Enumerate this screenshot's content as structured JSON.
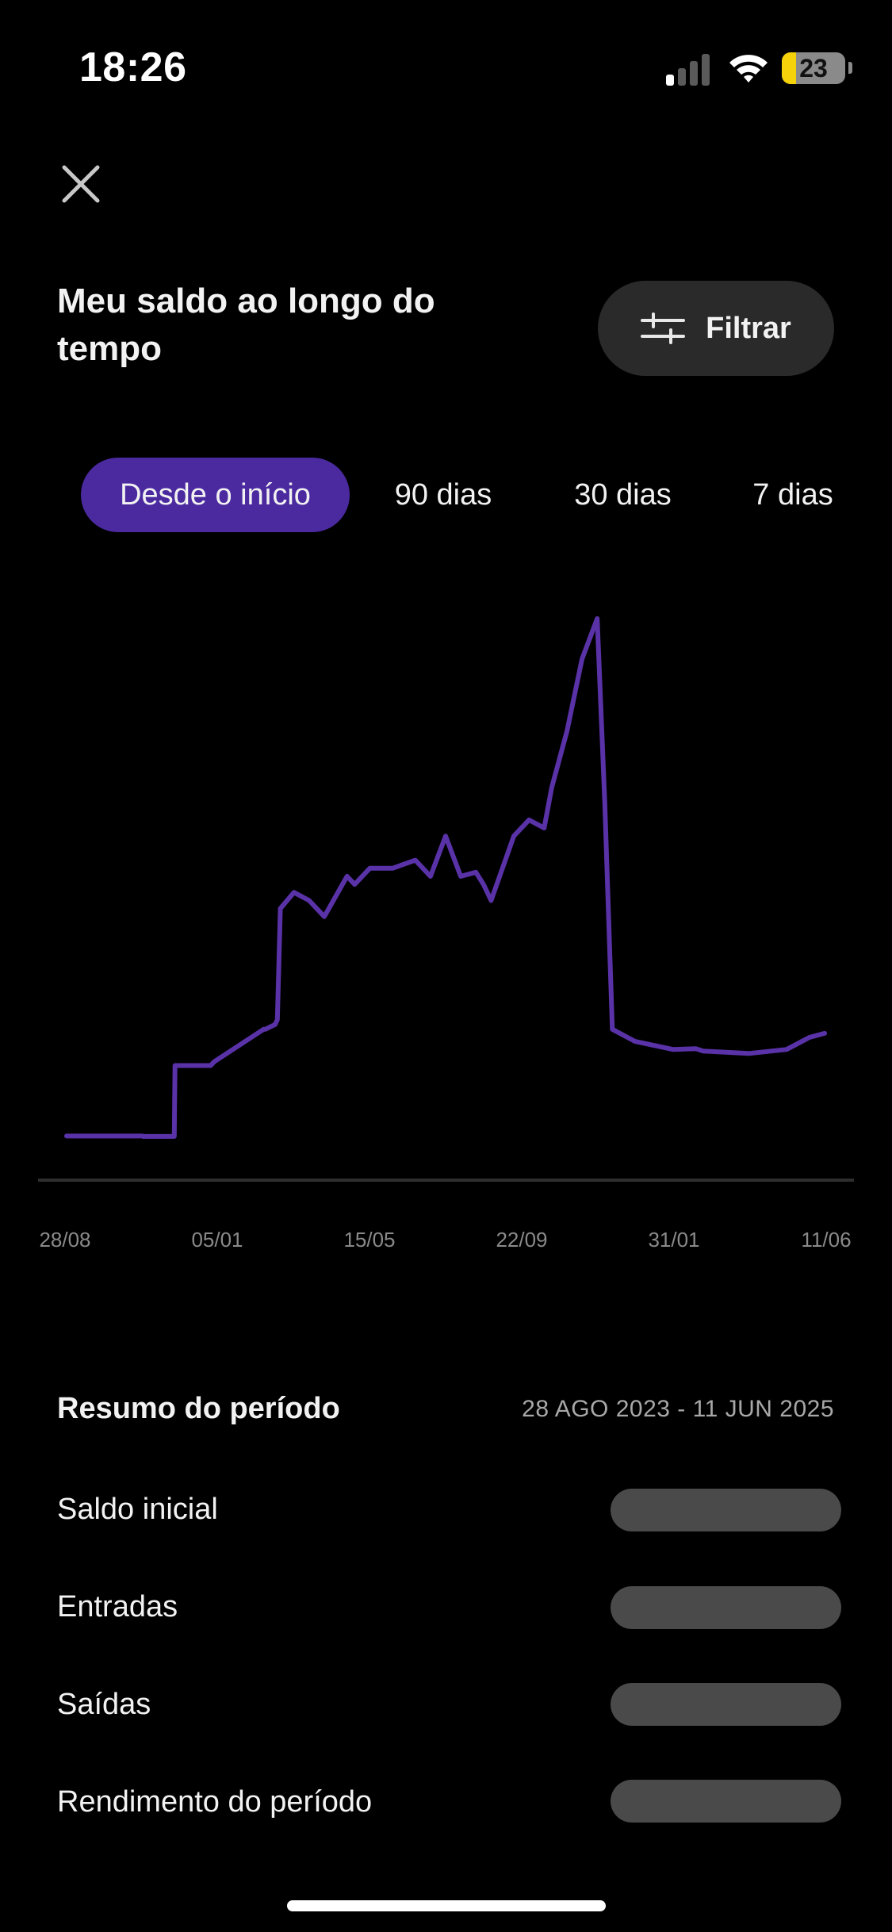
{
  "status_bar": {
    "time": "18:26",
    "battery_level": "23",
    "battery_fraction": 0.23,
    "signal_bars_active": 1,
    "signal_bars_total": 4,
    "icons": [
      "signal-icon",
      "wifi-icon",
      "battery-icon"
    ]
  },
  "header": {
    "close_icon": "close-icon",
    "title": "Meu saldo ao longo do tempo",
    "filter_label": "Filtrar",
    "filter_icon": "sliders-icon"
  },
  "tabs": [
    {
      "label": "Desde o início",
      "active": true
    },
    {
      "label": "90 dias",
      "active": false
    },
    {
      "label": "30 dias",
      "active": false
    },
    {
      "label": "7 dias",
      "active": false
    }
  ],
  "chart_data": {
    "type": "line",
    "title": "",
    "xlabel": "",
    "ylabel": "",
    "y_axis_labels_shown": false,
    "grid": false,
    "line_color": "#5a32a8",
    "x_tick_labels": [
      "28/08",
      "05/01",
      "15/05",
      "22/09",
      "31/01",
      "11/06"
    ],
    "note_units": "relative balance, no y-axis scale shown",
    "series": [
      {
        "x": [
          0,
          0.1,
          0.101,
          0.142,
          0.143,
          0.19,
          0.195,
          0.26,
          0.262,
          0.275,
          0.278,
          0.282,
          0.3,
          0.32,
          0.34,
          0.37,
          0.38,
          0.4,
          0.43,
          0.46,
          0.48,
          0.5,
          0.52,
          0.54,
          0.55,
          0.56,
          0.59,
          0.61,
          0.63,
          0.64,
          0.66,
          0.68,
          0.7,
          0.71,
          0.72,
          0.74,
          0.75,
          0.8,
          0.83,
          0.84,
          0.9,
          0.95,
          0.98,
          1.0
        ],
        "y": [
          0.75,
          0.75,
          0.7,
          0.7,
          9.5,
          9.5,
          10.0,
          14.0,
          14.0,
          14.6,
          15.2,
          29.0,
          31.0,
          30.0,
          28.0,
          33.0,
          32.0,
          34.0,
          34.0,
          35.0,
          33.0,
          38.0,
          33.0,
          33.5,
          32.0,
          30.0,
          38.0,
          40.0,
          39.0,
          44.0,
          51.0,
          60.0,
          65.0,
          42.0,
          14.0,
          13.0,
          12.5,
          11.5,
          11.6,
          11.3,
          11.0,
          11.5,
          13.0,
          13.5
        ]
      }
    ]
  },
  "summary": {
    "title": "Resumo do período",
    "range": "28 AGO 2023 - 11 JUN 2025",
    "rows": [
      {
        "label": "Saldo inicial",
        "value": ""
      },
      {
        "label": "Entradas",
        "value": ""
      },
      {
        "label": "Saídas",
        "value": ""
      },
      {
        "label": "Rendimento do período",
        "value": ""
      }
    ]
  },
  "colors": {
    "background": "#000000",
    "accent": "#4b2aa0",
    "chart_line": "#5a32a8",
    "muted_text": "#a8a8a8",
    "placeholder": "#4a4a4a"
  }
}
